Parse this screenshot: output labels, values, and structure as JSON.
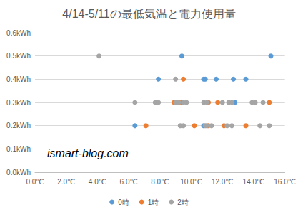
{
  "chart_data": {
    "type": "scatter",
    "title": "4/14-5/11の最低気温と電力使用量",
    "annotations": [
      "ismart-blog.com"
    ],
    "xlim": [
      0,
      16
    ],
    "xticks": [
      {
        "value": 0,
        "label": "0.0℃"
      },
      {
        "value": 2,
        "label": "2.0℃"
      },
      {
        "value": 4,
        "label": "4.0℃"
      },
      {
        "value": 6,
        "label": "6.0℃"
      },
      {
        "value": 8,
        "label": "8.0℃"
      },
      {
        "value": 10,
        "label": "10.0℃"
      },
      {
        "value": 12,
        "label": "12.0℃"
      },
      {
        "value": 14,
        "label": "14.0℃"
      },
      {
        "value": 16,
        "label": "16.0℃"
      }
    ],
    "ylim": [
      0,
      0.6
    ],
    "yticks": [
      {
        "value": 0,
        "label": "0.0kWh"
      },
      {
        "value": 0.1,
        "label": "0.1kWh"
      },
      {
        "value": 0.2,
        "label": "0.2kWh"
      },
      {
        "value": 0.3,
        "label": "0.3kWh"
      },
      {
        "value": 0.4,
        "label": "0.4kWh"
      },
      {
        "value": 0.5,
        "label": "0.5kWh"
      },
      {
        "value": 0.6,
        "label": "0.6kWh"
      }
    ],
    "grid": true,
    "legend": "bottom",
    "series": [
      {
        "name": "0時",
        "color": "#5b9bd5",
        "x": [
          9.4,
          15.1,
          7.9,
          10.8,
          10.9,
          11.6,
          12.7,
          13.5,
          9.2,
          12.8,
          6.4,
          10.8
        ],
        "values": [
          0.5,
          0.5,
          0.4,
          0.4,
          0.4,
          0.4,
          0.4,
          0.4,
          0.3,
          0.3,
          0.2,
          0.2
        ]
      },
      {
        "name": "1時",
        "color": "#ed7d31",
        "x": [
          9.5,
          8.9,
          9.4,
          11.1,
          11.7,
          15.0,
          7.1,
          10.2,
          11.1,
          12.1,
          13.5
        ],
        "values": [
          0.4,
          0.3,
          0.3,
          0.3,
          0.3,
          0.3,
          0.2,
          0.2,
          0.2,
          0.2,
          0.2
        ]
      },
      {
        "name": "2時",
        "color": "#a5a5a5",
        "x": [
          4.1,
          9.0,
          6.4,
          7.7,
          7.9,
          9.0,
          9.2,
          9.5,
          9.7,
          10.8,
          11.0,
          12.0,
          12.4,
          12.6,
          13.9,
          14.1,
          14.6,
          9.3,
          9.5,
          10.9,
          11.0,
          11.3,
          12.3,
          12.6,
          14.4,
          15.0
        ],
        "values": [
          0.5,
          0.4,
          0.3,
          0.3,
          0.3,
          0.3,
          0.3,
          0.3,
          0.3,
          0.3,
          0.3,
          0.3,
          0.3,
          0.3,
          0.3,
          0.3,
          0.3,
          0.2,
          0.2,
          0.2,
          0.2,
          0.2,
          0.2,
          0.2,
          0.2,
          0.2
        ]
      }
    ]
  }
}
